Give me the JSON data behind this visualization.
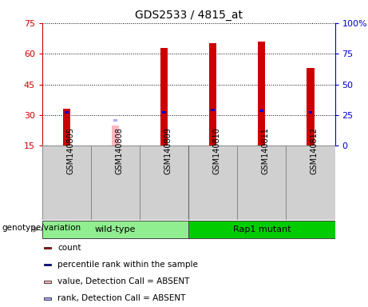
{
  "title": "GDS2533 / 4815_at",
  "samples": [
    "GSM140805",
    "GSM140808",
    "GSM140809",
    "GSM140810",
    "GSM140811",
    "GSM140812"
  ],
  "count_values": [
    33,
    null,
    63,
    65,
    66,
    53
  ],
  "count_absent": [
    null,
    25,
    null,
    null,
    null,
    null
  ],
  "percentile_values": [
    27,
    null,
    27.5,
    29.5,
    28.5,
    27.5
  ],
  "percentile_absent": [
    null,
    21,
    null,
    null,
    null,
    null
  ],
  "ylim_left": [
    15,
    75
  ],
  "ylim_right": [
    0,
    100
  ],
  "yticks_left": [
    15,
    30,
    45,
    60,
    75
  ],
  "ytick_labels_left": [
    "15",
    "30",
    "45",
    "60",
    "75"
  ],
  "yticks_right": [
    0,
    25,
    50,
    75,
    100
  ],
  "ytick_labels_right": [
    "0",
    "25",
    "50",
    "75",
    "100%"
  ],
  "groups": [
    {
      "label": "wild-type",
      "samples": [
        0,
        1,
        2
      ],
      "color": "#90ee90"
    },
    {
      "label": "Rap1 mutant",
      "samples": [
        3,
        4,
        5
      ],
      "color": "#00cc00"
    }
  ],
  "group_label": "genotype/variation",
  "bar_color_count": "#cc0000",
  "bar_color_count_absent": "#ffb6c1",
  "bar_color_rank": "#0000cc",
  "bar_color_rank_absent": "#aaaaff",
  "bar_width": 0.15,
  "rank_bar_width": 0.08,
  "legend_items": [
    {
      "label": "count",
      "color": "#cc0000"
    },
    {
      "label": "percentile rank within the sample",
      "color": "#0000cc"
    },
    {
      "label": "value, Detection Call = ABSENT",
      "color": "#ffb6c1"
    },
    {
      "label": "rank, Detection Call = ABSENT",
      "color": "#aaaaff"
    }
  ]
}
